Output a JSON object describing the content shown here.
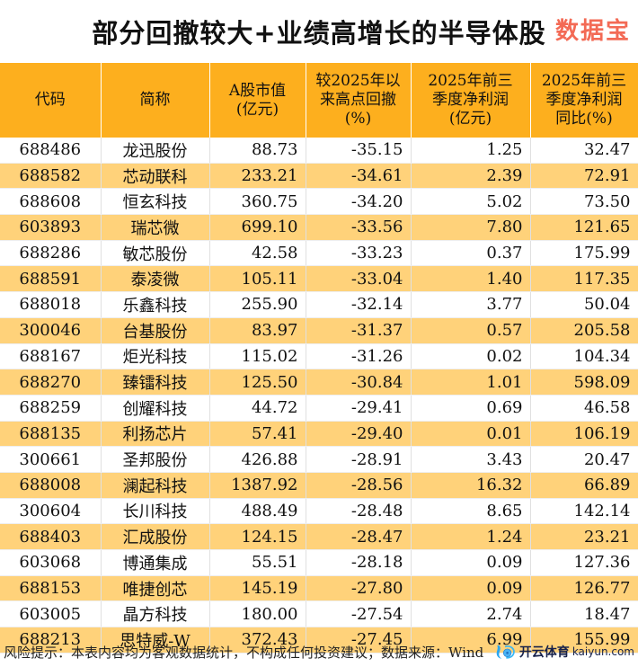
{
  "title": "部分回撤较大+业绩高增长的半导体股",
  "chart_data": {
    "type": "table",
    "columns": [
      "代码",
      "简称",
      "A股市值\n(亿元)",
      "较2025年以\n来高点回撤\n(%)",
      "2025年前三\n季度净利润\n(亿元)",
      "2025年前三\n季度净利润\n同比(%)"
    ],
    "rows": [
      [
        "688486",
        "龙迅股份",
        "88.73",
        "-35.15",
        "1.25",
        "32.47"
      ],
      [
        "688582",
        "芯动联科",
        "233.21",
        "-34.61",
        "2.39",
        "72.91"
      ],
      [
        "688608",
        "恒玄科技",
        "360.75",
        "-34.20",
        "5.02",
        "73.50"
      ],
      [
        "603893",
        "瑞芯微",
        "699.10",
        "-33.56",
        "7.80",
        "121.65"
      ],
      [
        "688286",
        "敏芯股份",
        "42.58",
        "-33.23",
        "0.37",
        "175.99"
      ],
      [
        "688591",
        "泰凌微",
        "105.11",
        "-33.04",
        "1.40",
        "117.35"
      ],
      [
        "688018",
        "乐鑫科技",
        "255.90",
        "-32.14",
        "3.77",
        "50.04"
      ],
      [
        "300046",
        "台基股份",
        "83.97",
        "-31.37",
        "0.57",
        "205.58"
      ],
      [
        "688167",
        "炬光科技",
        "115.02",
        "-31.26",
        "0.02",
        "104.34"
      ],
      [
        "688270",
        "臻镭科技",
        "125.50",
        "-30.84",
        "1.01",
        "598.09"
      ],
      [
        "688259",
        "创耀科技",
        "44.72",
        "-29.41",
        "0.69",
        "46.58"
      ],
      [
        "688135",
        "利扬芯片",
        "57.41",
        "-29.40",
        "0.01",
        "106.19"
      ],
      [
        "300661",
        "圣邦股份",
        "426.88",
        "-28.91",
        "3.43",
        "20.47"
      ],
      [
        "688008",
        "澜起科技",
        "1387.92",
        "-28.56",
        "16.32",
        "66.89"
      ],
      [
        "300604",
        "长川科技",
        "488.49",
        "-28.48",
        "8.65",
        "142.14"
      ],
      [
        "688403",
        "汇成股份",
        "124.15",
        "-28.47",
        "1.24",
        "23.21"
      ],
      [
        "603068",
        "博通集成",
        "55.51",
        "-28.18",
        "0.09",
        "127.36"
      ],
      [
        "688153",
        "唯捷创芯",
        "145.19",
        "-27.80",
        "0.09",
        "126.77"
      ],
      [
        "603005",
        "晶方科技",
        "180.00",
        "-27.54",
        "2.74",
        "18.47"
      ],
      [
        "688213",
        "思特威-W",
        "372.43",
        "-27.45",
        "6.99",
        "155.99"
      ]
    ],
    "header_color": "#FDAF1E",
    "stripe_color": "#FFD27A"
  },
  "footer": "风险提示：本表内容均为客观数据统计，不构成任何投资建议；数据来源：Wind",
  "watermark": "数据宝",
  "logo": {
    "text": "开云体育",
    "url": "kaiyun.com"
  }
}
